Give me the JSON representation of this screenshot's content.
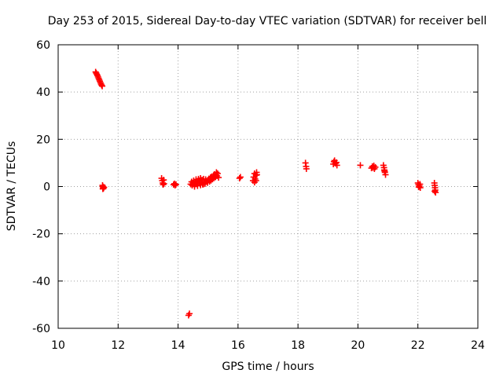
{
  "chart_data": {
    "type": "scatter",
    "title": "Day 253 of 2015, Sidereal Day-to-day VTEC variation (SDTVAR) for receiver bell",
    "xlabel": "GPS time / hours",
    "ylabel": "SDTVAR / TECUs",
    "xlim": [
      10,
      24
    ],
    "ylim": [
      -60,
      60
    ],
    "xticks": [
      10,
      12,
      14,
      16,
      18,
      20,
      22,
      24
    ],
    "yticks": [
      -60,
      -40,
      -20,
      0,
      20,
      40,
      60
    ],
    "grid": true,
    "marker": "+",
    "color": "#ff0000",
    "series": [
      {
        "name": "SDTVAR",
        "points": [
          [
            11.25,
            48.5
          ],
          [
            11.27,
            48.0
          ],
          [
            11.29,
            47.5
          ],
          [
            11.31,
            47.0
          ],
          [
            11.33,
            46.4
          ],
          [
            11.35,
            45.8
          ],
          [
            11.37,
            45.2
          ],
          [
            11.39,
            44.6
          ],
          [
            11.41,
            44.0
          ],
          [
            11.43,
            43.4
          ],
          [
            11.45,
            42.9
          ],
          [
            11.47,
            42.5
          ],
          [
            11.48,
            0.5
          ],
          [
            11.49,
            0.0
          ],
          [
            11.5,
            -0.5
          ],
          [
            11.51,
            -0.8
          ],
          [
            11.53,
            -0.3
          ],
          [
            11.49,
            -1.0
          ],
          [
            13.45,
            3.5
          ],
          [
            13.47,
            2.5
          ],
          [
            13.49,
            1.5
          ],
          [
            13.5,
            0.8
          ],
          [
            13.52,
            2.8
          ],
          [
            13.53,
            1.2
          ],
          [
            13.85,
            0.8
          ],
          [
            13.88,
            1.2
          ],
          [
            13.9,
            0.5
          ],
          [
            13.93,
            0.9
          ],
          [
            14.35,
            -54.5
          ],
          [
            14.38,
            -53.8
          ],
          [
            14.42,
            1.0
          ],
          [
            14.45,
            2.0
          ],
          [
            14.47,
            0.5
          ],
          [
            14.5,
            1.5
          ],
          [
            14.52,
            2.5
          ],
          [
            14.55,
            0.8
          ],
          [
            14.58,
            1.8
          ],
          [
            14.6,
            3.0
          ],
          [
            14.62,
            1.2
          ],
          [
            14.65,
            2.2
          ],
          [
            14.68,
            3.2
          ],
          [
            14.7,
            1.5
          ],
          [
            14.72,
            2.5
          ],
          [
            14.75,
            3.5
          ],
          [
            14.78,
            1.8
          ],
          [
            14.8,
            2.8
          ],
          [
            14.82,
            0.9
          ],
          [
            14.85,
            3.2
          ],
          [
            14.88,
            2.0
          ],
          [
            14.9,
            1.2
          ],
          [
            14.92,
            3.0
          ],
          [
            14.95,
            2.3
          ],
          [
            14.98,
            1.6
          ],
          [
            15.0,
            2.8
          ],
          [
            15.03,
            3.3
          ],
          [
            15.05,
            2.1
          ],
          [
            15.08,
            3.8
          ],
          [
            15.1,
            2.6
          ],
          [
            15.12,
            4.2
          ],
          [
            15.15,
            3.1
          ],
          [
            15.18,
            4.6
          ],
          [
            15.2,
            3.6
          ],
          [
            15.22,
            5.2
          ],
          [
            15.25,
            4.0
          ],
          [
            15.28,
            6.0
          ],
          [
            15.3,
            4.5
          ],
          [
            15.32,
            5.5
          ],
          [
            15.35,
            3.8
          ],
          [
            14.55,
            0.0
          ],
          [
            14.65,
            0.3
          ],
          [
            14.75,
            0.6
          ],
          [
            14.85,
            1.0
          ],
          [
            16.05,
            3.5
          ],
          [
            16.08,
            4.0
          ],
          [
            16.5,
            2.5
          ],
          [
            16.52,
            4.0
          ],
          [
            16.55,
            5.5
          ],
          [
            16.57,
            3.2
          ],
          [
            16.6,
            4.8
          ],
          [
            16.62,
            6.0
          ],
          [
            16.55,
            1.8
          ],
          [
            16.6,
            2.5
          ],
          [
            16.63,
            5.0
          ],
          [
            18.25,
            10.0
          ],
          [
            18.27,
            8.5
          ],
          [
            18.28,
            7.5
          ],
          [
            19.18,
            9.5
          ],
          [
            19.2,
            10.5
          ],
          [
            19.22,
            11.0
          ],
          [
            19.25,
            9.8
          ],
          [
            19.28,
            10.2
          ],
          [
            19.3,
            9.0
          ],
          [
            20.08,
            9.0
          ],
          [
            20.45,
            7.8
          ],
          [
            20.48,
            8.5
          ],
          [
            20.5,
            8.0
          ],
          [
            20.53,
            8.8
          ],
          [
            20.55,
            7.5
          ],
          [
            20.58,
            8.2
          ],
          [
            20.85,
            9.0
          ],
          [
            20.87,
            8.0
          ],
          [
            20.88,
            7.0
          ],
          [
            20.9,
            6.0
          ],
          [
            20.92,
            5.0
          ],
          [
            20.89,
            6.5
          ],
          [
            22.0,
            1.5
          ],
          [
            22.02,
            0.8
          ],
          [
            22.05,
            0.2
          ],
          [
            22.08,
            -0.5
          ],
          [
            22.03,
            -0.2
          ],
          [
            22.07,
            1.0
          ],
          [
            22.55,
            1.5
          ],
          [
            22.56,
            0.5
          ],
          [
            22.57,
            -0.5
          ],
          [
            22.58,
            -1.5
          ],
          [
            22.59,
            -2.5
          ],
          [
            22.56,
            -2.0
          ]
        ]
      }
    ]
  }
}
